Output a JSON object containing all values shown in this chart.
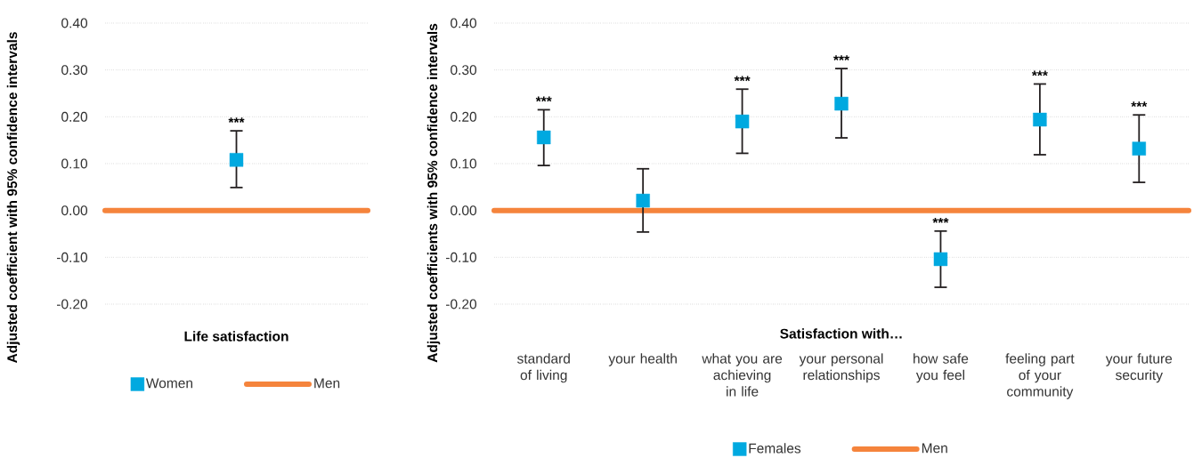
{
  "chart_data": [
    {
      "type": "scatter",
      "ylabel": "Adjusted coefficient with 95% confidence intervals",
      "xlabel": "Life satisfaction",
      "categories": [
        null
      ],
      "series": [
        {
          "name": "Women",
          "color": "#00a9e0",
          "values": [
            0.108
          ],
          "errors": [
            [
              0.049,
              0.17
            ]
          ]
        }
      ],
      "marker": "square",
      "ref_lines": [
        {
          "axis": "y",
          "value": 0,
          "label": "Men",
          "color": "#f5843c"
        }
      ],
      "ylim": [
        -0.2,
        0.4
      ],
      "yticks": [
        {
          "value": -0.2,
          "label": "-0.20"
        },
        {
          "value": -0.1,
          "label": "-0.10"
        },
        {
          "value": 0,
          "label": "0.00"
        },
        {
          "value": 0.1,
          "label": "0.10"
        },
        {
          "value": 0.2,
          "label": "0.20"
        },
        {
          "value": 0.3,
          "label": "0.30"
        },
        {
          "value": 0.4,
          "label": "0.40"
        }
      ],
      "grid": "y",
      "legend": "bottom",
      "annotations": [
        {
          "text": "***",
          "y": 0.17
        }
      ]
    },
    {
      "type": "scatter",
      "ylabel": "Adjusted coefficients with 95% confidence intervals",
      "xlabel": "Satisfaction with…",
      "categories": [
        "standard of living",
        "your health",
        "what you are achieving in life",
        "your personal relationships",
        "how safe you feel",
        "feeling part of your community",
        "your future security"
      ],
      "series": [
        {
          "name": "Females",
          "color": "#00a9e0",
          "values": [
            0.156,
            0.021,
            0.19,
            0.228,
            -0.104,
            0.194,
            0.132
          ],
          "errors": [
            [
              0.096,
              0.215
            ],
            [
              -0.046,
              0.089
            ],
            [
              0.122,
              0.259
            ],
            [
              0.155,
              0.303
            ],
            [
              -0.164,
              -0.044
            ],
            [
              0.119,
              0.27
            ],
            [
              0.06,
              0.204
            ]
          ]
        }
      ],
      "marker": "square",
      "ref_lines": [
        {
          "axis": "y",
          "value": 0,
          "label": "Men",
          "color": "#f5843c"
        }
      ],
      "ylim": [
        -0.2,
        0.4
      ],
      "yticks": [
        {
          "value": -0.2,
          "label": "-0.20"
        },
        {
          "value": -0.1,
          "label": "-0.10"
        },
        {
          "value": 0,
          "label": "0.00"
        },
        {
          "value": 0.1,
          "label": "0.10"
        },
        {
          "value": 0.2,
          "label": "0.20"
        },
        {
          "value": 0.3,
          "label": "0.30"
        },
        {
          "value": 0.4,
          "label": "0.40"
        }
      ],
      "grid": "y",
      "legend": "bottom",
      "annotations": [
        {
          "text": "***",
          "x": "standard of living",
          "y": 0.215
        },
        {
          "text": "***",
          "x": "what you are achieving in life",
          "y": 0.259
        },
        {
          "text": "***",
          "x": "your personal relationships",
          "y": 0.303
        },
        {
          "text": "***",
          "x": "how safe you feel",
          "y": -0.044
        },
        {
          "text": "***",
          "x": "feeling part of your community",
          "y": 0.27
        },
        {
          "text": "***",
          "x": "your future security",
          "y": 0.204
        }
      ]
    }
  ]
}
